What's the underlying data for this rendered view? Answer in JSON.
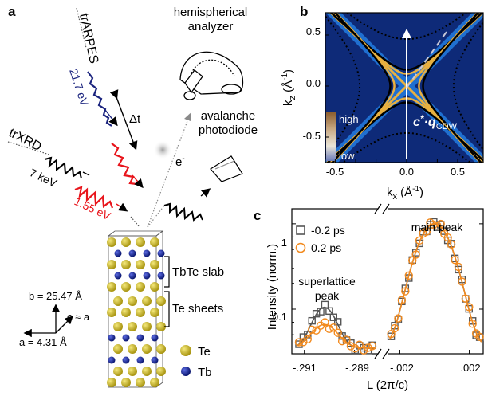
{
  "panels": {
    "a": "a",
    "b": "b",
    "c": "c"
  },
  "panel_a": {
    "trARPES": "trARPES",
    "trXRD": "trXRD",
    "e_arpes": "21.7 eV",
    "e_xrd": "7 keV",
    "e_pump": "1.55 eV",
    "delay": "Δt",
    "electron": "e",
    "electron_sup": "-",
    "analyzer_l1": "hemispherical",
    "analyzer_l2": "analyzer",
    "apd_l1": "avalanche",
    "apd_l2": "photodiode",
    "slab": "TbTe slab",
    "sheets": "Te sheets",
    "leg_te": "Te",
    "leg_tb": "Tb",
    "axis_b": "b = 25.47 Å",
    "axis_c": "c ≈ a",
    "axis_a": "a = 4.31 Å",
    "colors": {
      "arpes": "#1a237e",
      "pump": "#e8141b",
      "xrd": "#000000",
      "te": "#c8b414",
      "tb": "#1a2a9a"
    }
  },
  "panel_b": {
    "xlabel_k": "k",
    "xlabel_sub": "x",
    "xlabel_unit": " (Å",
    "xlabel_sup": "-1",
    "xlabel_close": ")",
    "ylabel_k": "k",
    "ylabel_sub": "z",
    "ylabel_unit": " (Å",
    "ylabel_sup": "-1",
    "ylabel_close": ")",
    "xticks": [
      "-0.5",
      "0.0",
      "0.5"
    ],
    "yticks": [
      "0.5",
      "0.0",
      "-0.5"
    ],
    "cbar_high": "high",
    "cbar_low": "low",
    "vector_c": "c",
    "vector_star": "*",
    "vector_q": "·q",
    "vector_sub": "CDW"
  },
  "chart_data": {
    "type": "scatter",
    "xlabel": "L (2π/c)",
    "ylabel": "Intensity (norm.)",
    "yscale": "log",
    "ylim": [
      0.03,
      1.5
    ],
    "yticks": [
      "1",
      "0.1"
    ],
    "xticks_left": [
      "-.291",
      "-.289"
    ],
    "xticks_right": [
      "-.002",
      ".002"
    ],
    "annotations": {
      "superlattice_l1": "superlattice",
      "superlattice_l2": "peak",
      "main": "main peak"
    },
    "series": [
      {
        "name": "-0.2 ps",
        "color": "#555555",
        "marker": "square",
        "superlattice": {
          "center": -0.2902,
          "amp": 0.07,
          "width": 0.00042,
          "bg": 0.035
        },
        "main": {
          "center": 0.0,
          "amp": 0.97,
          "width": 0.00085,
          "bg": 0.035
        }
      },
      {
        "name": "0.2 ps",
        "color": "#f28a1e",
        "marker": "circle",
        "superlattice": {
          "center": -0.2902,
          "amp": 0.031,
          "width": 0.00048,
          "bg": 0.035
        },
        "main": {
          "center": 0.0,
          "amp": 0.97,
          "width": 0.00085,
          "bg": 0.035
        }
      }
    ]
  }
}
